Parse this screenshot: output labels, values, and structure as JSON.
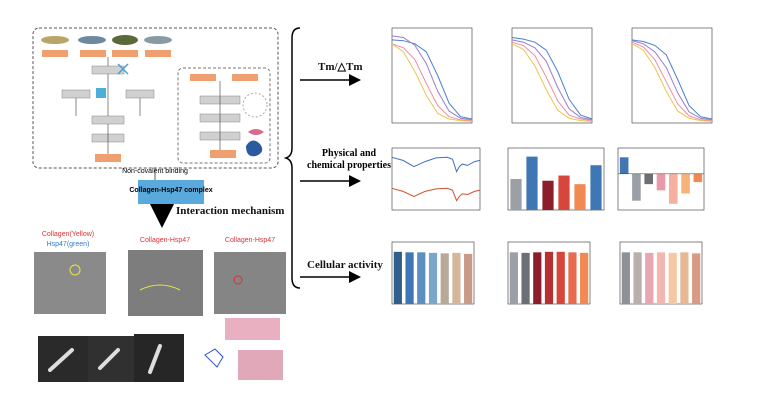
{
  "flow": {
    "binding_label": "Non-covalent binding",
    "complex_label": "Collagen-Hsp47 complex",
    "mechanism_label": "Interaction mechanism"
  },
  "tem": {
    "labels": [
      "Collagen(Yellow)",
      "Hsp47(green)",
      "Collagen-Hsp47",
      "Collagen-Hsp47"
    ]
  },
  "arrows": [
    "Tm/△Tm",
    "Physical and chemical properties",
    "Cellular activity"
  ],
  "panels": [
    {
      "type": "line",
      "x": [
        20,
        25,
        30,
        35,
        40,
        45,
        50,
        55
      ],
      "ylim": [
        0,
        1.2
      ],
      "series": [
        {
          "color": "#4a7fd0",
          "values": [
            1.05,
            1.04,
            1.0,
            0.9,
            0.6,
            0.25,
            0.08,
            0.05
          ]
        },
        {
          "color": "#9a7cc9",
          "values": [
            1.1,
            1.08,
            0.98,
            0.75,
            0.4,
            0.15,
            0.06,
            0.04
          ]
        },
        {
          "color": "#f08ca8",
          "values": [
            1.0,
            0.95,
            0.8,
            0.5,
            0.22,
            0.08,
            0.04,
            0.03
          ]
        },
        {
          "color": "#e8c84a",
          "values": [
            1.0,
            0.9,
            0.65,
            0.35,
            0.12,
            0.05,
            0.03,
            0.02
          ]
        }
      ]
    },
    {
      "type": "line",
      "x": [
        20,
        25,
        30,
        35,
        40,
        45,
        50,
        55
      ],
      "ylim": [
        0,
        1.2
      ],
      "series": [
        {
          "color": "#4a7fd0",
          "values": [
            1.08,
            1.06,
            1.02,
            0.92,
            0.65,
            0.3,
            0.1,
            0.05
          ]
        },
        {
          "color": "#9a7cc9",
          "values": [
            1.05,
            1.02,
            0.95,
            0.78,
            0.45,
            0.18,
            0.07,
            0.04
          ]
        },
        {
          "color": "#f08ca8",
          "values": [
            1.02,
            0.98,
            0.85,
            0.58,
            0.28,
            0.1,
            0.05,
            0.03
          ]
        },
        {
          "color": "#e8c84a",
          "values": [
            1.0,
            0.93,
            0.72,
            0.42,
            0.16,
            0.06,
            0.03,
            0.02
          ]
        }
      ]
    },
    {
      "type": "line",
      "x": [
        20,
        25,
        30,
        35,
        40,
        45,
        50,
        55
      ],
      "ylim": [
        0,
        1.2
      ],
      "series": [
        {
          "color": "#4a7fd0",
          "values": [
            1.05,
            1.03,
            0.98,
            0.86,
            0.55,
            0.22,
            0.08,
            0.05
          ]
        },
        {
          "color": "#9a7cc9",
          "values": [
            1.04,
            1.0,
            0.9,
            0.7,
            0.38,
            0.14,
            0.06,
            0.04
          ]
        },
        {
          "color": "#f08ca8",
          "values": [
            1.02,
            0.96,
            0.8,
            0.52,
            0.24,
            0.09,
            0.04,
            0.03
          ]
        },
        {
          "color": "#e8c84a",
          "values": [
            1.0,
            0.92,
            0.7,
            0.4,
            0.15,
            0.06,
            0.03,
            0.02
          ]
        }
      ]
    },
    {
      "type": "line",
      "x": [
        4000,
        3600,
        3200,
        2800,
        2400,
        2000,
        1800,
        1650,
        1550,
        1450,
        1250,
        1000,
        800
      ],
      "ylim": [
        0,
        1
      ],
      "series": [
        {
          "color": "#3f6fbf",
          "values": [
            0.85,
            0.8,
            0.7,
            0.78,
            0.84,
            0.85,
            0.82,
            0.62,
            0.7,
            0.74,
            0.72,
            0.78,
            0.8
          ]
        },
        {
          "color": "#d0502c",
          "values": [
            0.35,
            0.3,
            0.22,
            0.3,
            0.34,
            0.35,
            0.32,
            0.15,
            0.22,
            0.26,
            0.25,
            0.3,
            0.32
          ]
        }
      ]
    },
    {
      "type": "bar",
      "ylim": [
        0,
        1.8
      ],
      "values": [
        0.9,
        1.55,
        0.85,
        1.0,
        0.75,
        1.3
      ],
      "colors": [
        "#9aa0a6",
        "#3f77b5",
        "#8b1e2a",
        "#d6463a",
        "#f08a52",
        "#3f77b5"
      ]
    },
    {
      "type": "bar",
      "ylim": [
        -3.5,
        2.5
      ],
      "values": [
        1.6,
        -2.6,
        -1.0,
        -1.6,
        -2.9,
        -1.9,
        -0.8
      ],
      "colors": [
        "#3f77b5",
        "#9aa0a6",
        "#6c6f73",
        "#e89aa8",
        "#f6b0a0",
        "#f7b27a",
        "#f08a52"
      ]
    },
    {
      "type": "bar",
      "ylim": [
        0,
        120
      ],
      "values": [
        101,
        100,
        100,
        99,
        98,
        99,
        97
      ],
      "colors": [
        "#2f5f8a",
        "#3f77b5",
        "#5a8fbf",
        "#7aa7c9",
        "#b7a99a",
        "#d4b79b",
        "#c99a86"
      ]
    },
    {
      "type": "bar",
      "ylim": [
        0,
        120
      ],
      "values": [
        100,
        99,
        100,
        101,
        101,
        100,
        99
      ],
      "colors": [
        "#9aa0a6",
        "#6c6f73",
        "#8b1e2a",
        "#b5302f",
        "#d6463a",
        "#e86b4f",
        "#f08a52"
      ]
    },
    {
      "type": "bar",
      "ylim": [
        0,
        120
      ],
      "values": [
        100,
        100,
        99,
        100,
        99,
        100,
        98
      ],
      "colors": [
        "#8e9196",
        "#b8b0aa",
        "#e8a6b2",
        "#f2b7b0",
        "#f6c7a4",
        "#e6b893",
        "#d99a84"
      ]
    }
  ]
}
